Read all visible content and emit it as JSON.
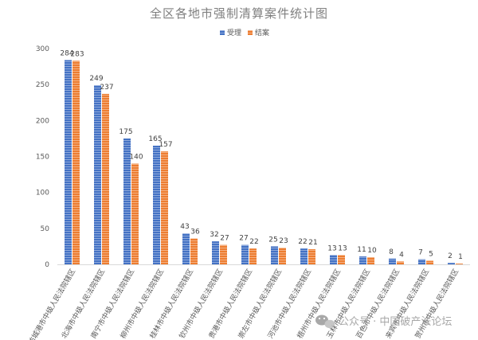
{
  "chart_data": {
    "type": "bar",
    "title": "全区各地市强制清算案件统计图",
    "categories": [
      "防城港市中级人民法院辖区",
      "北海市中级人民法院辖区",
      "南宁市中级人民法院辖区",
      "柳州市中级人民法院辖区",
      "桂林市中级人民法院辖区",
      "钦州市中级人民法院辖区",
      "贵港市中级人民法院辖区",
      "崇左市中级人民法院辖区",
      "河池市中级人民法院辖区",
      "梧州市中级人民法院辖区",
      "玉林市中级人民法院辖区",
      "百色市中级人民法院辖区",
      "来宾市中级人民法院辖区",
      "贺州市中级人民法院辖区"
    ],
    "series": [
      {
        "name": "受理",
        "color": "#4472C4",
        "values": [
          284,
          249,
          175,
          165,
          43,
          32,
          27,
          25,
          22,
          13,
          11,
          8,
          7,
          2
        ]
      },
      {
        "name": "结案",
        "color": "#ED7D31",
        "values": [
          283,
          237,
          140,
          157,
          36,
          27,
          22,
          23,
          21,
          13,
          10,
          4,
          5,
          1
        ]
      }
    ],
    "yticks": [
      "0",
      "50",
      "100",
      "150",
      "200",
      "250",
      "300"
    ],
    "ylim": [
      0,
      300
    ],
    "legend_position": "top-right",
    "grid": false
  },
  "watermark": {
    "icon": "wechat-icon",
    "text": "公众号 · 中国破产法论坛"
  }
}
